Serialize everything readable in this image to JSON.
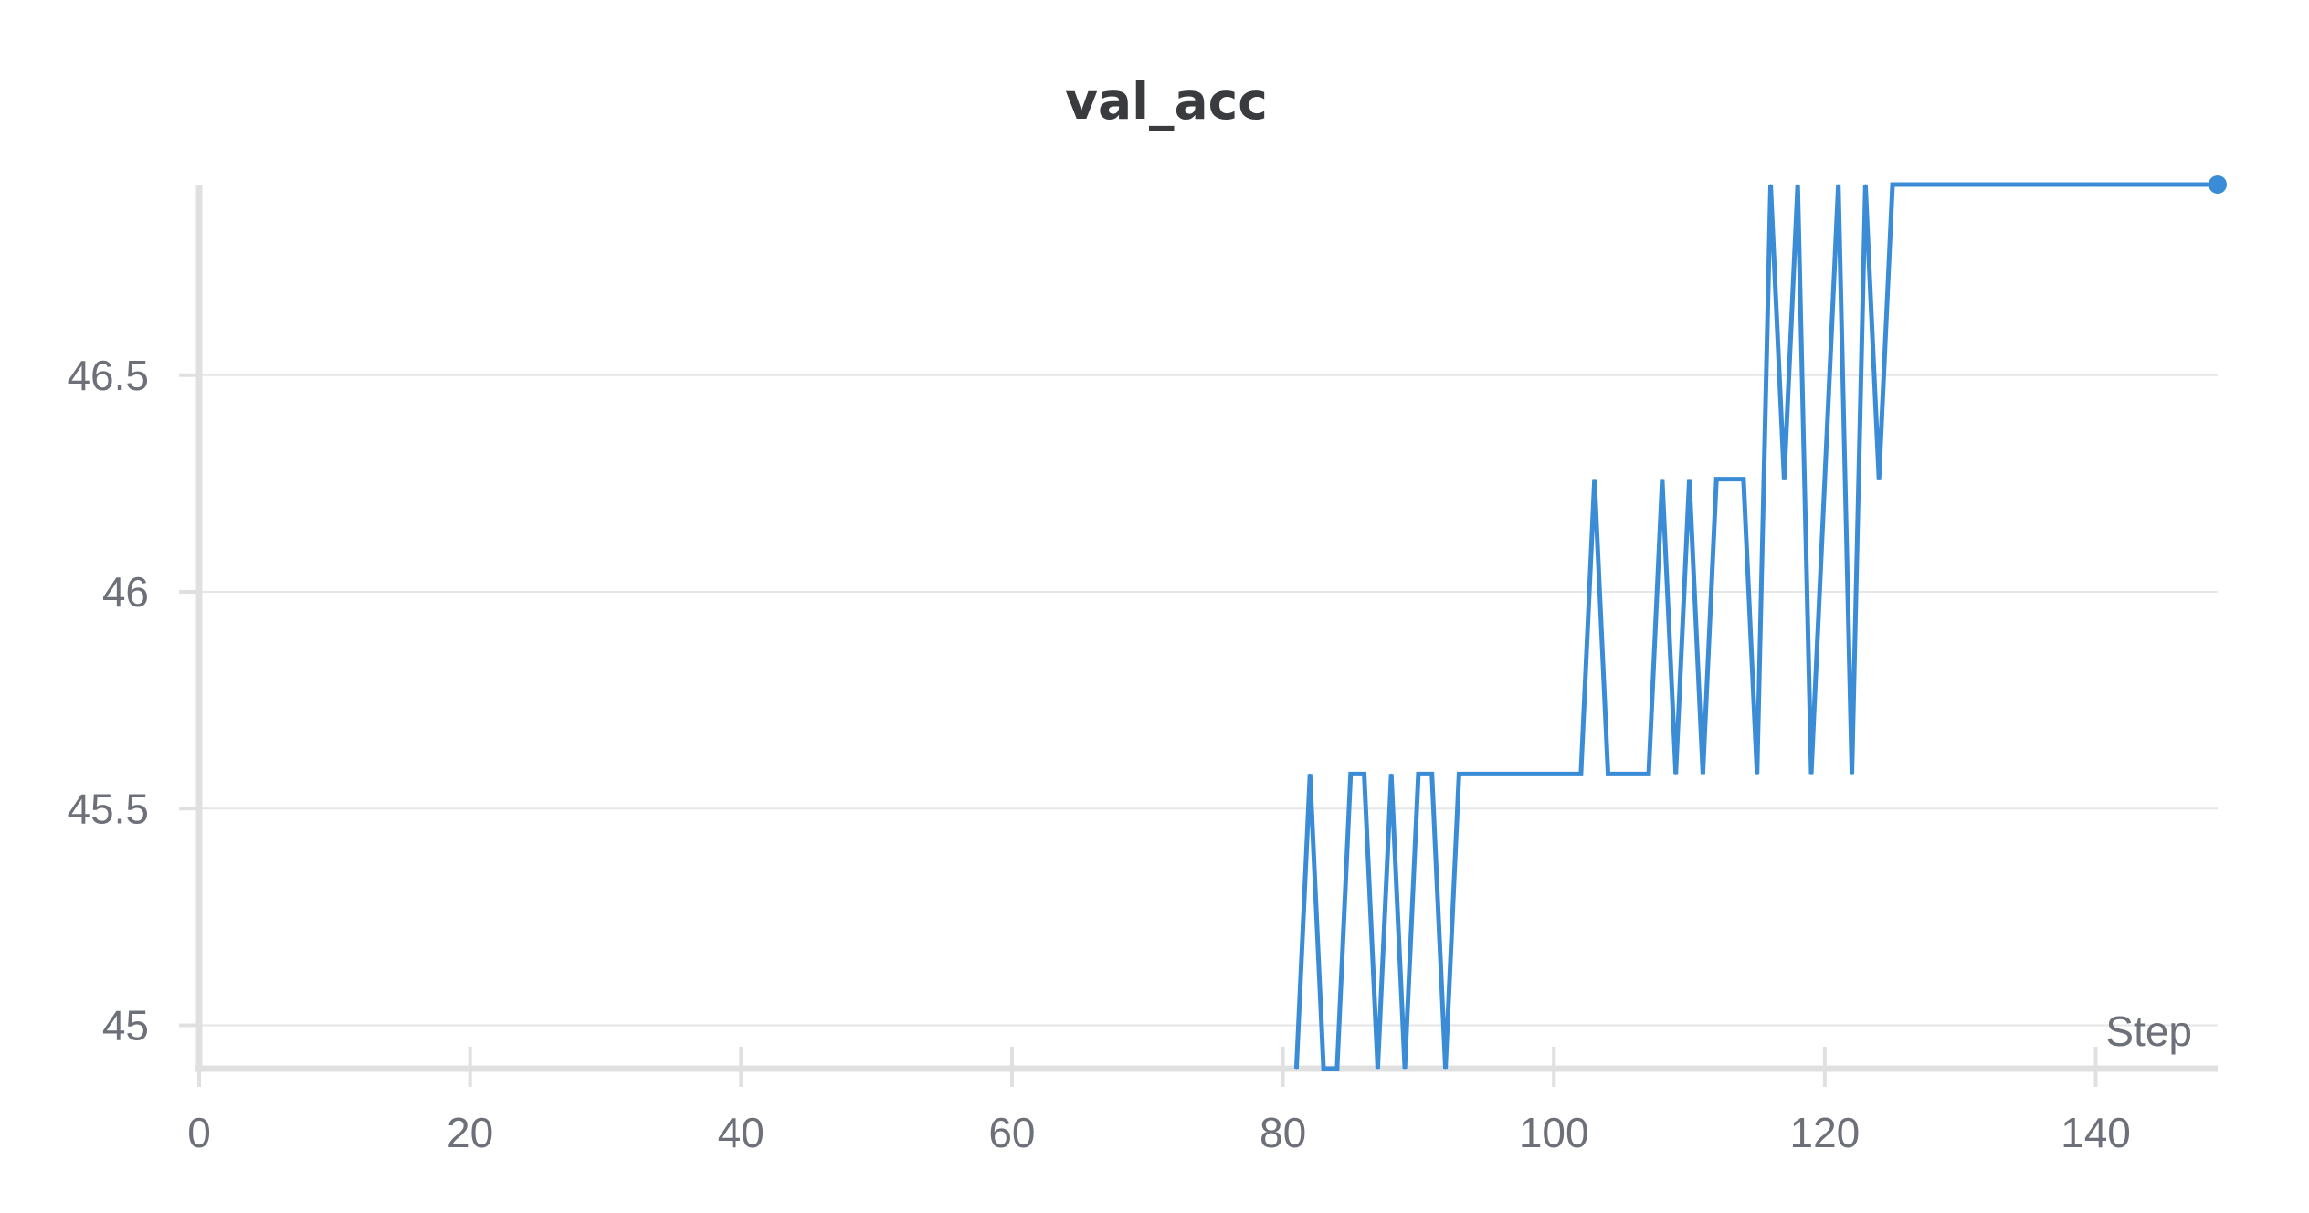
{
  "chart_data": {
    "type": "line",
    "title": "val_acc",
    "xlabel": "Step",
    "ylabel": "",
    "xlim": [
      0,
      149
    ],
    "ylim": [
      44.9,
      46.94
    ],
    "xticks": [
      0,
      20,
      40,
      60,
      80,
      100,
      120,
      140
    ],
    "yticks": [
      45,
      45.5,
      46,
      46.5
    ],
    "grid": true,
    "series": [
      {
        "color": "#3a8cd6",
        "x": [
          81,
          82,
          83,
          84,
          85,
          86,
          87,
          88,
          89,
          90,
          91,
          92,
          93,
          94,
          95,
          96,
          97,
          98,
          99,
          100,
          101,
          102,
          103,
          104,
          105,
          106,
          107,
          108,
          109,
          110,
          111,
          112,
          113,
          114,
          115,
          116,
          117,
          118,
          119,
          120,
          121,
          122,
          123,
          124,
          125,
          126,
          127,
          128,
          129,
          130,
          131,
          132,
          133,
          134,
          135,
          136,
          137,
          138,
          139,
          140,
          141,
          142,
          143,
          144,
          145,
          146,
          147,
          148,
          149
        ],
        "y": [
          44.9,
          45.58,
          44.9,
          44.9,
          45.58,
          45.58,
          44.9,
          45.58,
          44.9,
          45.58,
          45.58,
          44.9,
          45.58,
          45.58,
          45.58,
          45.58,
          45.58,
          45.58,
          45.58,
          45.58,
          45.58,
          45.58,
          46.26,
          45.58,
          45.58,
          45.58,
          45.58,
          46.26,
          45.58,
          46.26,
          45.58,
          46.26,
          46.26,
          46.26,
          45.58,
          46.94,
          46.26,
          46.94,
          45.58,
          46.26,
          46.94,
          45.58,
          46.94,
          46.26,
          46.94,
          46.94,
          46.94,
          46.94,
          46.94,
          46.94,
          46.94,
          46.94,
          46.94,
          46.94,
          46.94,
          46.94,
          46.94,
          46.94,
          46.94,
          46.94,
          46.94,
          46.94,
          46.94,
          46.94,
          46.94,
          46.94,
          46.94,
          46.94,
          46.94
        ]
      }
    ]
  }
}
